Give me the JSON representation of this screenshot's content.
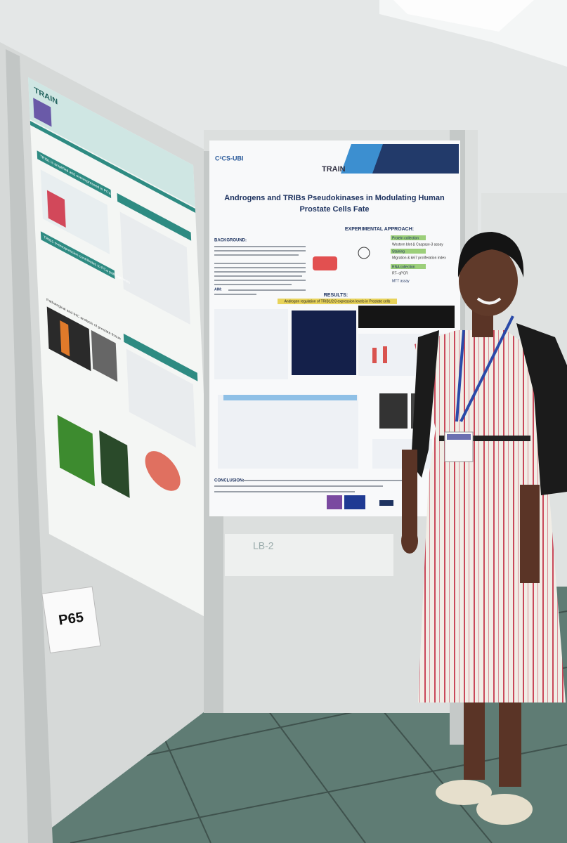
{
  "left_poster": {
    "header": "TRAIN",
    "sections": [
      "TRIB1 is amplified and overexpressed in PCa",
      "TRIB1 overexpression contributes to PCa pathogenesis",
      "Pathological and IHC analysis of prostate tissue"
    ]
  },
  "board_label": "P65",
  "floor_sign": "LB-2",
  "main_poster": {
    "logos": [
      "C²CS-UBI",
      "TRAIN"
    ],
    "title_lines": [
      "Androgens and TRIBs Pseudokinases in Modulating Human",
      "Prostate Cells Fate"
    ],
    "background": "BACKGROUND:",
    "aim": "AIM:",
    "approach": {
      "heading": "EXPERIMENTAL APPROACH:",
      "steps": [
        {
          "label": "Protein collection",
          "detail": "Western blot & Caspase-3 assay"
        },
        {
          "label": "Staining",
          "detail": "Migration & ki67 proliferation index"
        },
        {
          "label": "RNA collection",
          "detail": "RT- qPCR"
        },
        {
          "label": "MTT assay",
          "detail": null
        }
      ]
    },
    "results": "RESULTS:",
    "results_banner": "Androgen regulation of TRIB1/2/3 expression levels in Prostate cells",
    "conclusion": "CONCLUSION:"
  }
}
